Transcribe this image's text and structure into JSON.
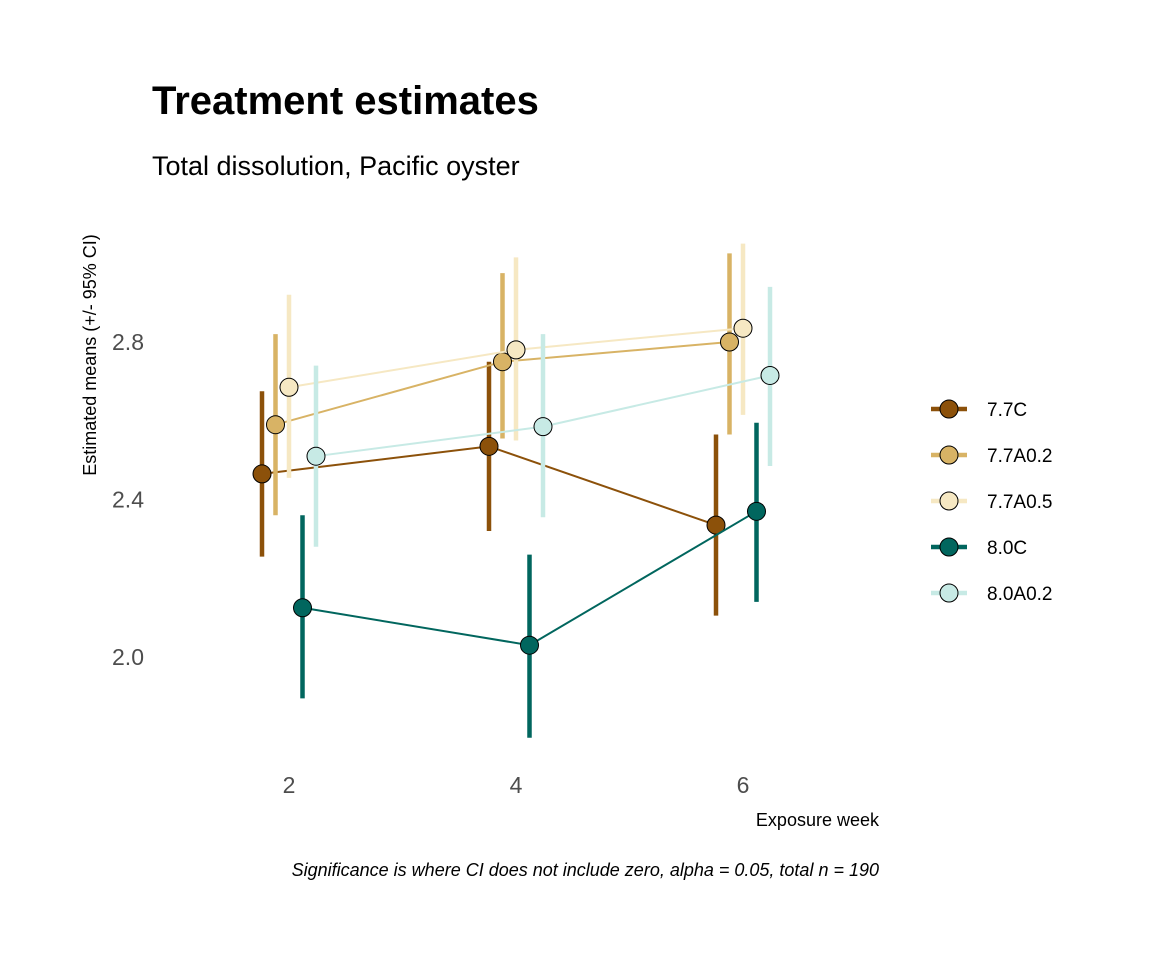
{
  "chart_data": {
    "type": "line",
    "title": "Treatment estimates",
    "subtitle": "Total dissolution, Pacific oyster",
    "xlabel": "Exposure week",
    "ylabel": "Estimated means (+/- 95% CI)",
    "caption": "Significance is where CI does not include zero, alpha = 0.05, total n = 190",
    "x": [
      2,
      4,
      6
    ],
    "x_ticks": [
      "2",
      "4",
      "6"
    ],
    "y_ticks": [
      "2.0",
      "2.4",
      "2.8"
    ],
    "ylim": [
      1.77,
      3.1
    ],
    "grid": false,
    "legend_position": "right",
    "series": [
      {
        "name": "7.7C",
        "color": "#8c510a",
        "values": [
          2.465,
          2.535,
          2.335
        ],
        "lower": [
          2.255,
          2.32,
          2.105
        ],
        "upper": [
          2.675,
          2.75,
          2.565
        ]
      },
      {
        "name": "7.7A0.2",
        "color": "#d8b365",
        "values": [
          2.59,
          2.75,
          2.8
        ],
        "lower": [
          2.36,
          2.555,
          2.565
        ],
        "upper": [
          2.82,
          2.975,
          3.025
        ]
      },
      {
        "name": "7.7A0.5",
        "color": "#f6e8c3",
        "values": [
          2.685,
          2.78,
          2.835
        ],
        "lower": [
          2.455,
          2.55,
          2.615
        ],
        "upper": [
          2.92,
          3.015,
          3.05
        ]
      },
      {
        "name": "8.0C",
        "color": "#01665e",
        "values": [
          2.125,
          2.03,
          2.37
        ],
        "lower": [
          1.895,
          1.795,
          2.14
        ],
        "upper": [
          2.36,
          2.26,
          2.595
        ]
      },
      {
        "name": "8.0A0.2",
        "color": "#c7eae5",
        "values": [
          2.51,
          2.585,
          2.715
        ],
        "lower": [
          2.28,
          2.355,
          2.485
        ],
        "upper": [
          2.74,
          2.82,
          2.94
        ]
      }
    ]
  }
}
